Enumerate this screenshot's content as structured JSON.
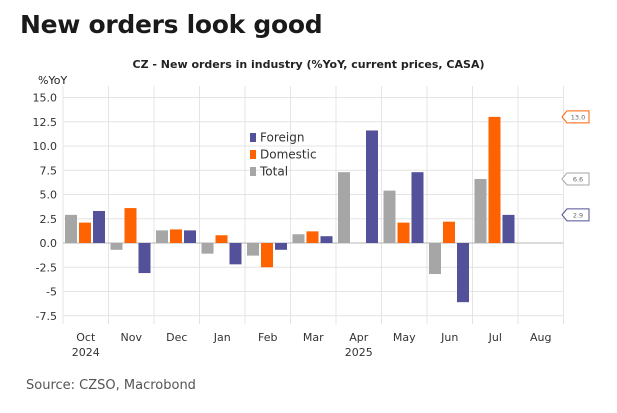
{
  "headline": "New orders look good",
  "source": "Source: CZSO, Macrobond",
  "chart_data": {
    "type": "bar",
    "title": "CZ - New orders in industry (%YoY, current prices, CASA)",
    "ylabel": "%YoY",
    "xlabel": "",
    "ylim": [
      -8.5,
      16
    ],
    "yticks": [
      -7.5,
      -5,
      -2.5,
      0,
      2.5,
      5,
      7.5,
      10,
      12.5,
      15
    ],
    "ytick_labels": [
      "-7.5",
      "-5",
      "-2.5",
      "0.0",
      "2.5",
      "5.0",
      "7.5",
      "10.0",
      "12.5",
      "15.0"
    ],
    "grid": true,
    "legend_position": "upper-center",
    "categories": [
      "Oct",
      "Nov",
      "Dec",
      "Jan",
      "Feb",
      "Mar",
      "Apr",
      "May",
      "Jun",
      "Jul",
      "Aug"
    ],
    "year_labels": [
      {
        "label": "2024",
        "category": "Oct"
      },
      {
        "label": "2025",
        "category": "Apr"
      }
    ],
    "series": [
      {
        "name": "Total",
        "color": "#a6a6a6",
        "values": [
          2.9,
          -0.7,
          1.3,
          -1.1,
          -1.3,
          0.9,
          7.3,
          5.4,
          -3.2,
          6.6,
          null
        ]
      },
      {
        "name": "Domestic",
        "color": "#ff6200",
        "values": [
          2.1,
          3.6,
          1.4,
          0.8,
          -2.5,
          1.2,
          null,
          2.1,
          2.2,
          13.0,
          null
        ]
      },
      {
        "name": "Foreign",
        "color": "#525199",
        "values": [
          3.3,
          -3.1,
          1.3,
          -2.2,
          -0.7,
          0.7,
          11.6,
          7.3,
          -6.1,
          2.9,
          null
        ]
      }
    ],
    "legend_order": [
      "Foreign",
      "Domestic",
      "Total"
    ],
    "end_labels": [
      {
        "series": "Domestic",
        "text": "13.0"
      },
      {
        "series": "Total",
        "text": "6.6"
      },
      {
        "series": "Foreign",
        "text": "2.9"
      }
    ]
  }
}
